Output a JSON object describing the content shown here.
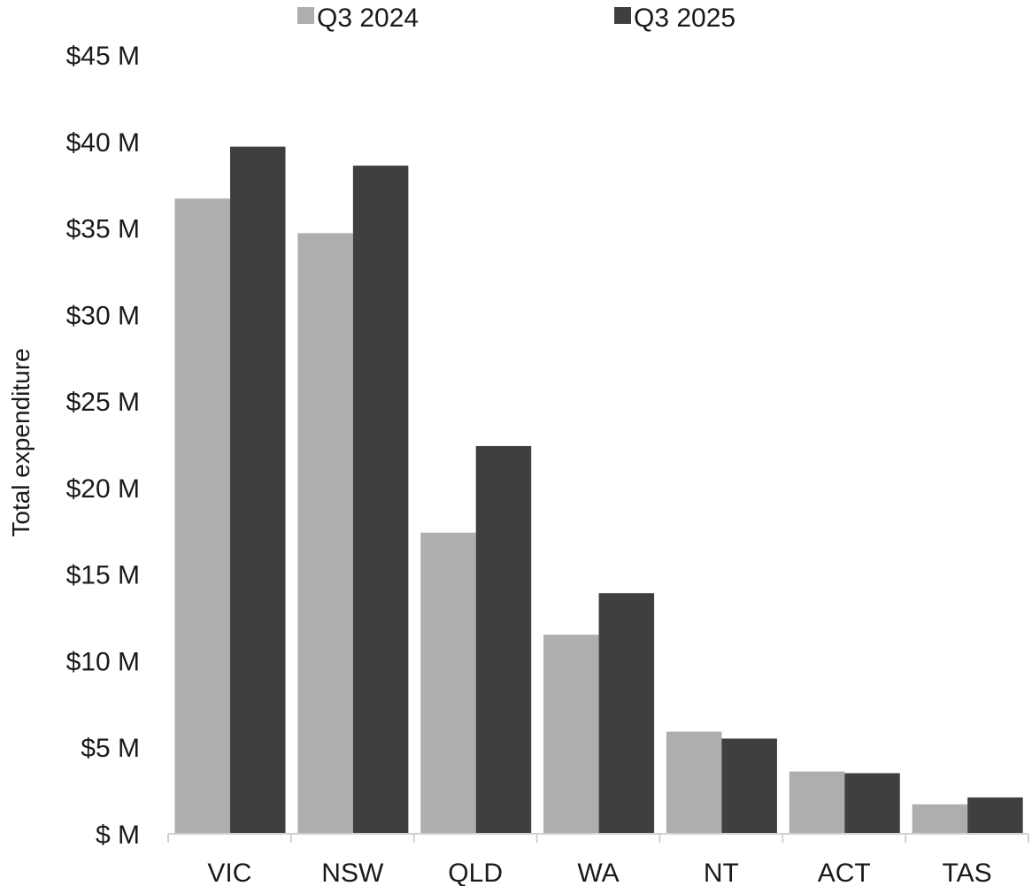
{
  "chart_data": {
    "type": "bar",
    "title": "",
    "xlabel": "",
    "ylabel": "Total expenditure",
    "categories": [
      "VIC",
      "NSW",
      "QLD",
      "WA",
      "NT",
      "ACT",
      "TAS"
    ],
    "series": [
      {
        "name": "Q3 2024",
        "color": "#b0aeac",
        "values": [
          36.7,
          34.7,
          17.4,
          11.5,
          5.9,
          3.6,
          1.7
        ]
      },
      {
        "name": "Q3 2025",
        "color": "#3f3f3f",
        "values": [
          39.7,
          38.6,
          22.4,
          13.9,
          5.5,
          3.5,
          2.1
        ]
      }
    ],
    "ylim": [
      0,
      45
    ],
    "yticks": [
      0,
      5,
      10,
      15,
      20,
      25,
      30,
      35,
      40,
      45
    ],
    "ytick_labels": [
      "$ M",
      "$5 M",
      "$10 M",
      "$15 M",
      "$20 M",
      "$25 M",
      "$30 M",
      "$35 M",
      "$40 M",
      "$45 M"
    ],
    "grid": false,
    "legend_position": "top"
  }
}
